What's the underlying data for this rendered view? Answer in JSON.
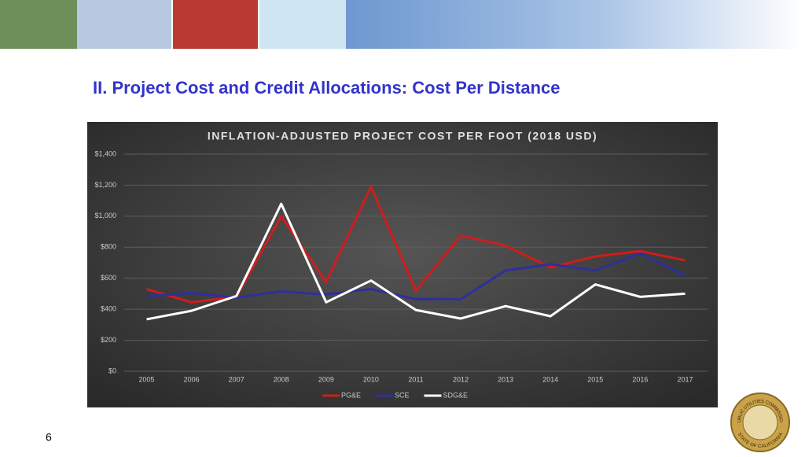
{
  "slide": {
    "title": "II. Project Cost and Credit Allocations: Cost Per Distance",
    "page_number": "6"
  },
  "seal": {
    "top": "PUBLIC UTILITIES COMMISSION",
    "bottom": "STATE OF CALIFORNIA"
  },
  "chart_data": {
    "type": "line",
    "title": "INFLATION-ADJUSTED PROJECT COST PER FOOT (2018 USD)",
    "categories": [
      "2005",
      "2006",
      "2007",
      "2008",
      "2009",
      "2010",
      "2011",
      "2012",
      "2013",
      "2014",
      "2015",
      "2016",
      "2017"
    ],
    "series": [
      {
        "name": "PG&E",
        "color": "#d01c1c",
        "values": [
          530,
          445,
          480,
          1000,
          575,
          1190,
          520,
          875,
          810,
          670,
          740,
          775,
          715
        ]
      },
      {
        "name": "SCE",
        "color": "#2f2f9c",
        "values": [
          485,
          505,
          475,
          515,
          495,
          530,
          465,
          465,
          650,
          690,
          650,
          760,
          615
        ]
      },
      {
        "name": "SDG&E",
        "color": "#ffffff",
        "values": [
          335,
          390,
          485,
          1080,
          445,
          585,
          395,
          340,
          420,
          355,
          560,
          480,
          500
        ]
      }
    ],
    "ylim": [
      0,
      1400
    ],
    "yticks": [
      {
        "value": 0,
        "label": "$0"
      },
      {
        "value": 200,
        "label": "$200"
      },
      {
        "value": 400,
        "label": "$400"
      },
      {
        "value": 600,
        "label": "$600"
      },
      {
        "value": 800,
        "label": "$800"
      },
      {
        "value": 1000,
        "label": "$1,000"
      },
      {
        "value": 1200,
        "label": "$1,200"
      },
      {
        "value": 1400,
        "label": "$1,400"
      }
    ],
    "grid": true,
    "legend": "bottom"
  }
}
